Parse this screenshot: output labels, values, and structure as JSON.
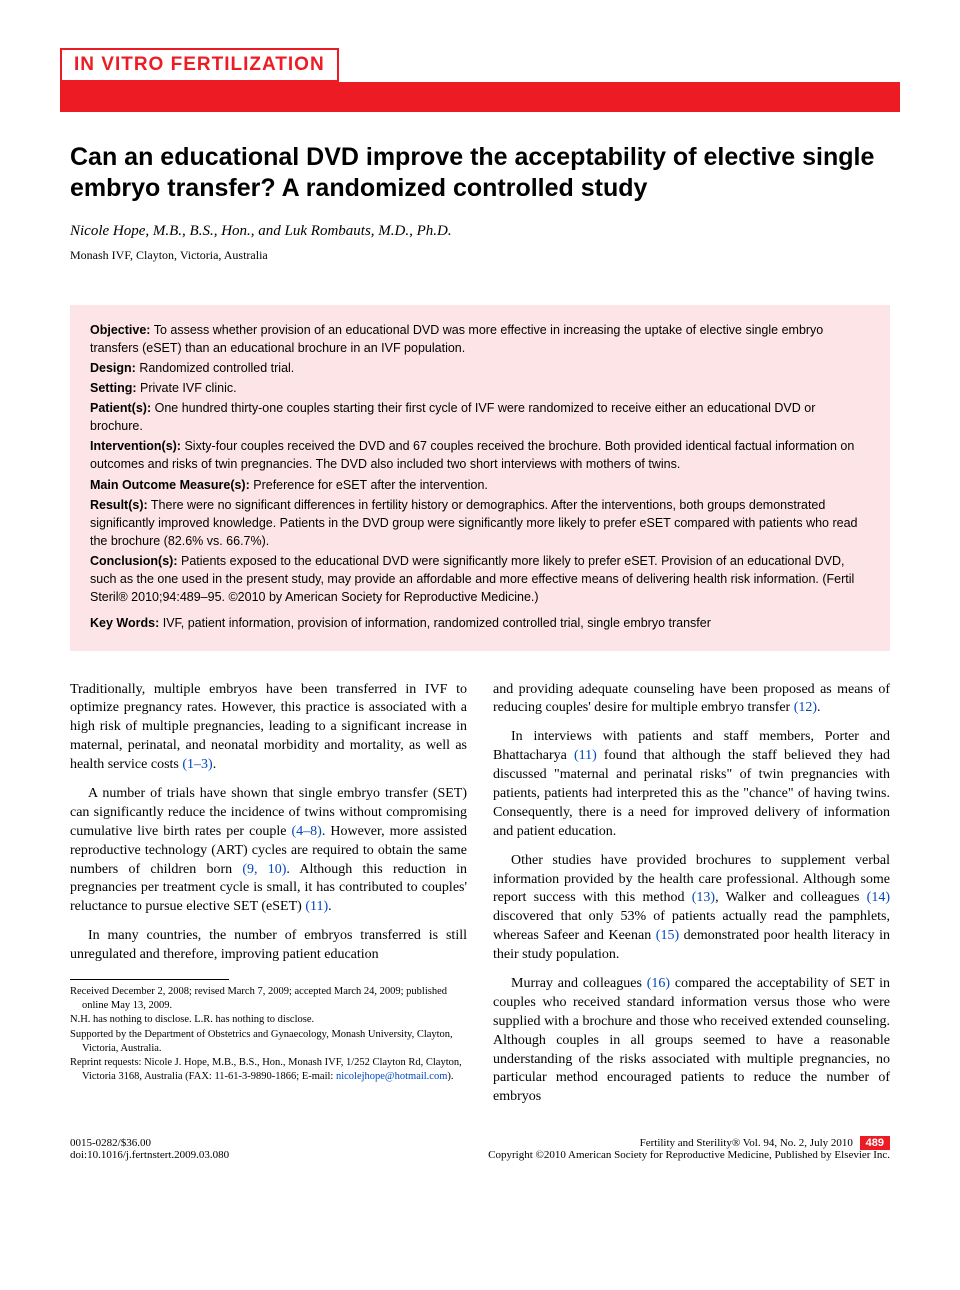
{
  "section": "IN VITRO FERTILIZATION",
  "title": "Can an educational DVD improve the acceptability of elective single embryo transfer? A randomized controlled study",
  "authors": "Nicole Hope, M.B., B.S., Hon., and Luk Rombauts, M.D., Ph.D.",
  "affiliation": "Monash IVF, Clayton, Victoria, Australia",
  "abstract": {
    "objective_label": "Objective:",
    "objective": "To assess whether provision of an educational DVD was more effective in increasing the uptake of elective single embryo transfers (eSET) than an educational brochure in an IVF population.",
    "design_label": "Design:",
    "design": "Randomized controlled trial.",
    "setting_label": "Setting:",
    "setting": "Private IVF clinic.",
    "patients_label": "Patient(s):",
    "patients": "One hundred thirty-one couples starting their first cycle of IVF were randomized to receive either an educational DVD or brochure.",
    "interventions_label": "Intervention(s):",
    "interventions": "Sixty-four couples received the DVD and 67 couples received the brochure. Both provided identical factual information on outcomes and risks of twin pregnancies. The DVD also included two short interviews with mothers of twins.",
    "outcomes_label": "Main Outcome Measure(s):",
    "outcomes": "Preference for eSET after the intervention.",
    "results_label": "Result(s):",
    "results": "There were no significant differences in fertility history or demographics. After the interventions, both groups demonstrated significantly improved knowledge. Patients in the DVD group were significantly more likely to prefer eSET compared with patients who read the brochure (82.6% vs. 66.7%).",
    "conclusions_label": "Conclusion(s):",
    "conclusions": "Patients exposed to the educational DVD were significantly more likely to prefer eSET. Provision of an educational DVD, such as the one used in the present study, may provide an affordable and more effective means of delivering health risk information. (Fertil Steril® 2010;94:489–95. ©2010 by American Society for Reproductive Medicine.)",
    "keywords_label": "Key Words:",
    "keywords": "IVF, patient information, provision of information, randomized controlled trial, single embryo transfer"
  },
  "body": {
    "p1a": "Traditionally, multiple embryos have been transferred in IVF to optimize pregnancy rates. However, this practice is associated with a high risk of multiple pregnancies, leading to a significant increase in maternal, perinatal, and neonatal morbidity and mortality, as well as health service costs ",
    "p1ref": "(1–3)",
    "p1b": ".",
    "p2a": "A number of trials have shown that single embryo transfer (SET) can significantly reduce the incidence of twins without compromising cumulative live birth rates per couple ",
    "p2ref1": "(4–8)",
    "p2b": ". However, more assisted reproductive technology (ART) cycles are required to obtain the same numbers of children born ",
    "p2ref2": "(9, 10)",
    "p2c": ". Although this reduction in pregnancies per treatment cycle is small, it has contributed to couples' reluctance to pursue elective SET (eSET) ",
    "p2ref3": "(11)",
    "p2d": ".",
    "p3": "In many countries, the number of embryos transferred is still unregulated and therefore, improving patient education",
    "p4a": "and providing adequate counseling have been proposed as means of reducing couples' desire for multiple embryo transfer ",
    "p4ref": "(12)",
    "p4b": ".",
    "p5a": "In interviews with patients and staff members, Porter and Bhattacharya ",
    "p5ref": "(11)",
    "p5b": " found that although the staff believed they had discussed \"maternal and perinatal risks\" of twin pregnancies with patients, patients had interpreted this as the \"chance\" of having twins. Consequently, there is a need for improved delivery of information and patient education.",
    "p6a": "Other studies have provided brochures to supplement verbal information provided by the health care professional. Although some report success with this method ",
    "p6ref1": "(13)",
    "p6b": ", Walker and colleagues ",
    "p6ref2": "(14)",
    "p6c": " discovered that only 53% of patients actually read the pamphlets, whereas Safeer and Keenan ",
    "p6ref3": "(15)",
    "p6d": " demonstrated poor health literacy in their study population.",
    "p7a": "Murray and colleagues ",
    "p7ref": "(16)",
    "p7b": " compared the acceptability of SET in couples who received standard information versus those who were supplied with a brochure and those who received extended counseling. Although couples in all groups seemed to have a reasonable understanding of the risks associated with multiple pregnancies, no particular method encouraged patients to reduce the number of embryos"
  },
  "footnotes": {
    "received": "Received December 2, 2008; revised March 7, 2009; accepted March 24, 2009; published online May 13, 2009.",
    "disclose": "N.H. has nothing to disclose. L.R. has nothing to disclose.",
    "supported": "Supported by the Department of Obstetrics and Gynaecology, Monash University, Clayton, Victoria, Australia.",
    "reprint_a": "Reprint requests: Nicole J. Hope, M.B., B.S., Hon., Monash IVF, 1/252 Clayton Rd, Clayton, Victoria 3168, Australia (FAX: 11-61-3-9890-1866; E-mail: ",
    "reprint_email": "nicolejhope@hotmail.com",
    "reprint_b": ")."
  },
  "footer": {
    "issn": "0015-0282/$36.00",
    "doi": "doi:10.1016/j.fertnstert.2009.03.080",
    "journal": "Fertility and Sterility® Vol. 94, No. 2, July 2010",
    "copyright": "Copyright ©2010 American Society for Reproductive Medicine, Published by Elsevier Inc.",
    "page": "489"
  }
}
